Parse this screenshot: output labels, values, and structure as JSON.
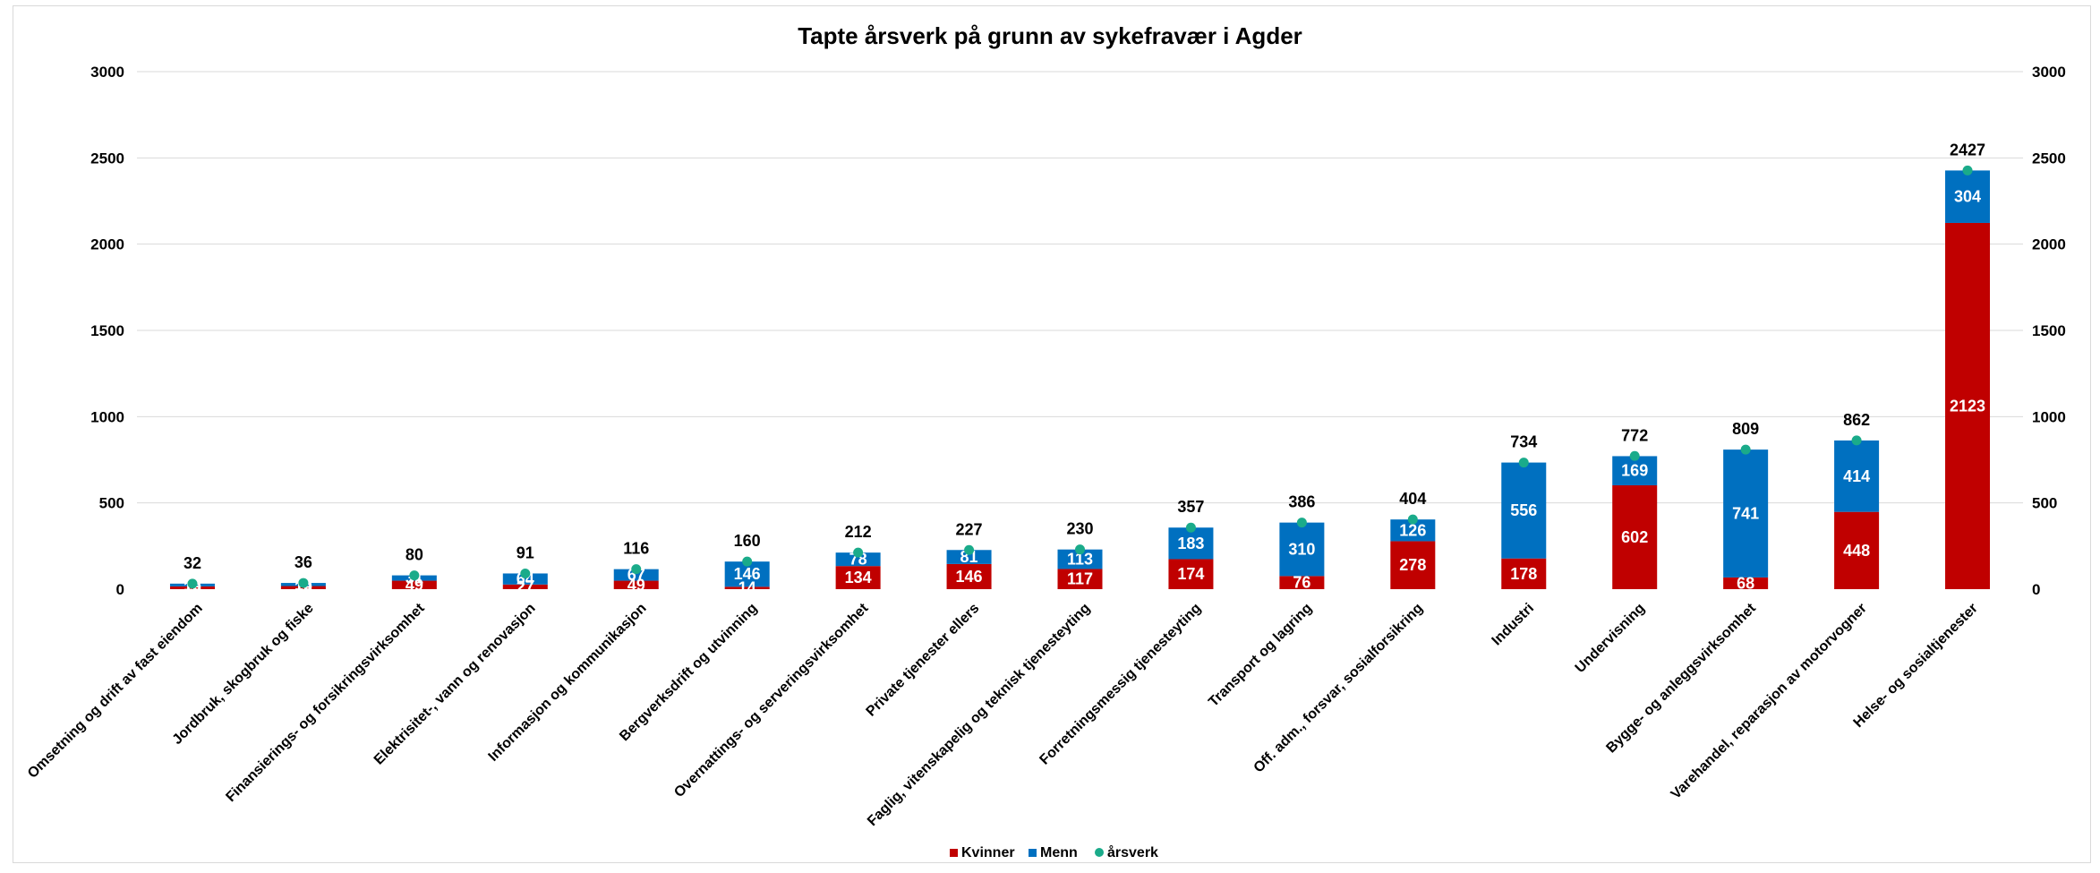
{
  "chart_data": {
    "type": "bar",
    "stacked": true,
    "title": "Tapte årsverk på grunn av sykefravær i Agder",
    "xlabel": "",
    "ylabel": "",
    "ylim": [
      0,
      3000
    ],
    "yticks": [
      0,
      500,
      1000,
      1500,
      2000,
      2500,
      3000
    ],
    "secondary_y_axis": true,
    "grid": true,
    "legend_position": "bottom",
    "categories": [
      "Omsetning og drift av fast eiendom",
      "Jordbruk, skogbruk og fiske",
      "Finansierings- og forsikringsvirksomhet",
      "Elektrisitet-, vann og renovasjon",
      "Informasjon og kommunikasjon",
      "Bergverksdrift og utvinning",
      "Overnattings- og serveringsvirksomhet",
      "Private tjenester ellers",
      "Faglig, vitenskapelig og teknisk tjenesteyting",
      "Forretningsmessig tjenesteyting",
      "Transport og lagring",
      "Off. adm., forsvar, sosialforsikring",
      "Industri",
      "Undervisning",
      "Bygge- og anleggsvirksomhet",
      "Varehandel, reparasjon av motorvogner",
      "Helse- og sosialtjenester"
    ],
    "series": [
      {
        "name": "Kvinner",
        "kind": "bar",
        "color": "#c00000",
        "values": [
          16,
          18,
          49,
          27,
          49,
          14,
          134,
          146,
          117,
          174,
          76,
          278,
          178,
          602,
          68,
          448,
          2123
        ]
      },
      {
        "name": "Menn",
        "kind": "bar",
        "color": "#0070c0",
        "values": [
          16,
          18,
          31,
          64,
          67,
          146,
          78,
          81,
          113,
          183,
          310,
          126,
          556,
          169,
          741,
          414,
          304
        ]
      },
      {
        "name": "årsverk",
        "kind": "marker",
        "color": "#1aab8a",
        "values": [
          32,
          36,
          80,
          91,
          116,
          160,
          212,
          227,
          230,
          357,
          386,
          404,
          734,
          772,
          809,
          862,
          2427
        ]
      }
    ]
  }
}
